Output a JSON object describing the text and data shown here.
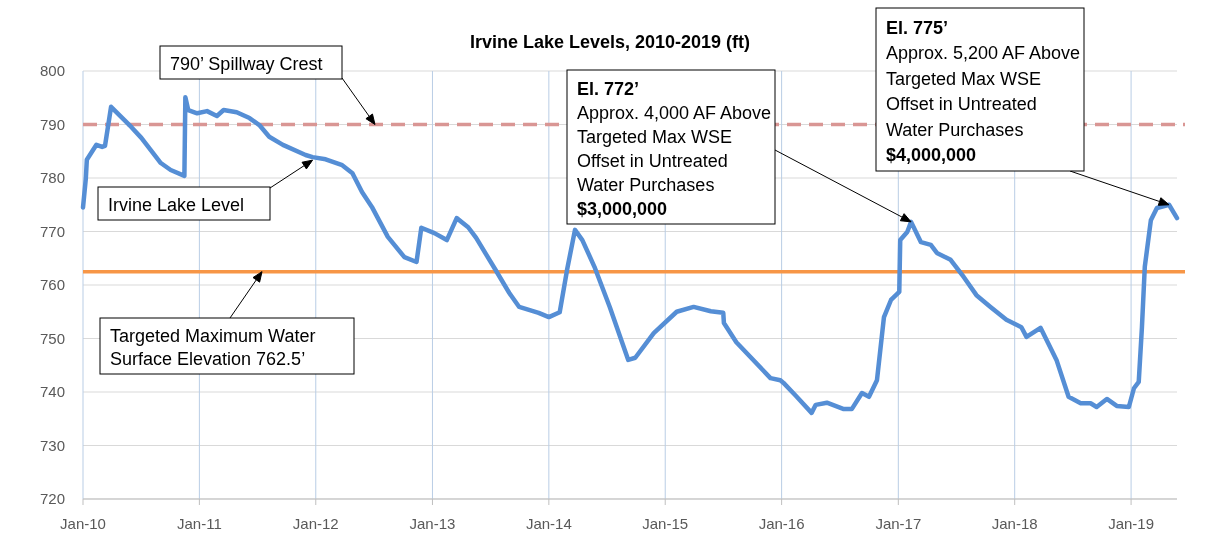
{
  "chart_data": {
    "type": "line",
    "title": "Irvine Lake Levels, 2010-2019 (ft)",
    "series": [
      {
        "name": "Irvine Lake Level",
        "color": "#558ed5",
        "x": [
          "2010-01-01",
          "2010-01-10",
          "2010-01-13",
          "2010-02-12",
          "2010-03-02",
          "2010-03-11",
          "2010-03-30",
          "2010-06-02",
          "2010-07-03",
          "2010-09-02",
          "2010-10-03",
          "2010-11-15",
          "2010-11-18",
          "2010-11-27",
          "2010-12-25",
          "2011-01-25",
          "2011-02-25",
          "2011-03-18",
          "2011-04-28",
          "2011-06-07",
          "2011-07-08",
          "2011-08-08",
          "2011-09-20",
          "2011-11-30",
          "2011-12-22",
          "2012-02-01",
          "2012-03-24",
          "2012-04-25",
          "2012-05-25",
          "2012-06-25",
          "2012-08-14",
          "2012-10-05",
          "2012-11-12",
          "2012-11-27",
          "2013-01-07",
          "2013-02-15",
          "2013-03-18",
          "2013-04-23",
          "2013-05-18",
          "2013-07-18",
          "2013-08-30",
          "2013-09-30",
          "2013-11-30",
          "2014-01-01",
          "2014-02-04",
          "2014-02-27",
          "2014-03-24",
          "2014-04-16",
          "2014-05-24",
          "2014-07-11",
          "2014-09-07",
          "2014-09-29",
          "2014-11-26",
          "2015-02-06",
          "2015-03-31",
          "2015-05-24",
          "2015-07-02",
          "2015-07-04",
          "2015-08-12",
          "2015-11-27",
          "2015-12-28",
          "2016-01-07",
          "2016-02-13",
          "2016-04-04",
          "2016-04-17",
          "2016-05-22",
          "2016-07-14",
          "2016-08-08",
          "2016-09-09",
          "2016-10-01",
          "2016-10-26",
          "2016-11-17",
          "2016-12-09",
          "2017-01-04",
          "2017-01-07",
          "2017-01-29",
          "2017-02-10",
          "2017-03-13",
          "2017-04-13",
          "2017-05-02",
          "2017-06-14",
          "2017-07-25",
          "2017-09-03",
          "2017-10-17",
          "2017-12-06",
          "2018-01-22",
          "2018-02-07",
          "2018-03-23",
          "2018-04-11",
          "2018-05-12",
          "2018-06-19",
          "2018-07-27",
          "2018-08-27",
          "2018-09-15",
          "2018-10-17",
          "2018-11-17",
          "2018-12-25",
          "2019-01-10",
          "2019-01-25",
          "2019-02-04",
          "2019-02-13",
          "2019-03-04",
          "2019-03-23",
          "2019-04-30",
          "2019-05-25"
        ],
        "values": [
          774.5,
          780,
          783.4,
          786.2,
          785.8,
          786,
          793.3,
          789.5,
          787.5,
          782.8,
          781.5,
          780.4,
          795.1,
          792.7,
          792.1,
          792.5,
          791.6,
          792.7,
          792.3,
          791.2,
          789.9,
          787.7,
          786.2,
          784.3,
          783.9,
          783.5,
          782.4,
          780.9,
          777.4,
          774.6,
          769,
          765.2,
          764.3,
          770.7,
          769.7,
          768.4,
          772.5,
          770.8,
          768.8,
          762.8,
          758.5,
          755.9,
          754.8,
          754,
          754.9,
          762.8,
          770.3,
          768.4,
          763.4,
          755.9,
          746,
          746.4,
          751,
          755,
          755.9,
          755.1,
          754.8,
          752.9,
          749.3,
          742.6,
          742.2,
          741.7,
          739.4,
          736.1,
          737.6,
          738,
          736.8,
          736.8,
          739.8,
          739.1,
          742.2,
          754,
          757.2,
          758.7,
          768.4,
          769.9,
          771.8,
          768,
          767.5,
          766,
          764.7,
          761.5,
          758.1,
          755.9,
          753.5,
          752.1,
          750.3,
          752,
          749.7,
          746,
          739.1,
          737.9,
          737.9,
          737.2,
          738.7,
          737.4,
          737.2,
          740.7,
          741.9,
          752.1,
          763.4,
          772.1,
          774.4,
          775,
          772.5
        ]
      }
    ],
    "xlim": [
      "2010-01-01",
      "2019-05-25"
    ],
    "xticks": [
      {
        "value": "2010-01-01",
        "label": "Jan-10"
      },
      {
        "value": "2011-01-01",
        "label": "Jan-11"
      },
      {
        "value": "2012-01-01",
        "label": "Jan-12"
      },
      {
        "value": "2013-01-01",
        "label": "Jan-13"
      },
      {
        "value": "2014-01-01",
        "label": "Jan-14"
      },
      {
        "value": "2015-01-01",
        "label": "Jan-15"
      },
      {
        "value": "2016-01-01",
        "label": "Jan-16"
      },
      {
        "value": "2017-01-01",
        "label": "Jan-17"
      },
      {
        "value": "2018-01-01",
        "label": "Jan-18"
      },
      {
        "value": "2019-01-01",
        "label": "Jan-19"
      }
    ],
    "ylim": [
      720,
      800
    ],
    "yticks": [
      720,
      730,
      740,
      750,
      760,
      770,
      780,
      790,
      800
    ],
    "grid": true,
    "line_style": "solid",
    "marker": "none",
    "ref_lines": [
      {
        "axis": "y",
        "value": 790,
        "label": "790’ Spillway Crest",
        "color": "#d99694",
        "line_style": "dashed"
      },
      {
        "axis": "y",
        "value": 762.5,
        "label": "Targeted Maximum Water\nSurface Elevation 762.5’",
        "color": "#f79646",
        "line_style": "solid"
      }
    ],
    "annotations": [
      "El. 772’\nApprox. 4,000 AF Above\nTargeted Max WSE\nOffset in Untreated\nWater Purchases\n$3,000,000",
      "El. 775’\nApprox. 5,200 AF Above\nTargeted Max WSE\nOffset in Untreated\nWater Purchases\n$4,000,000"
    ]
  }
}
